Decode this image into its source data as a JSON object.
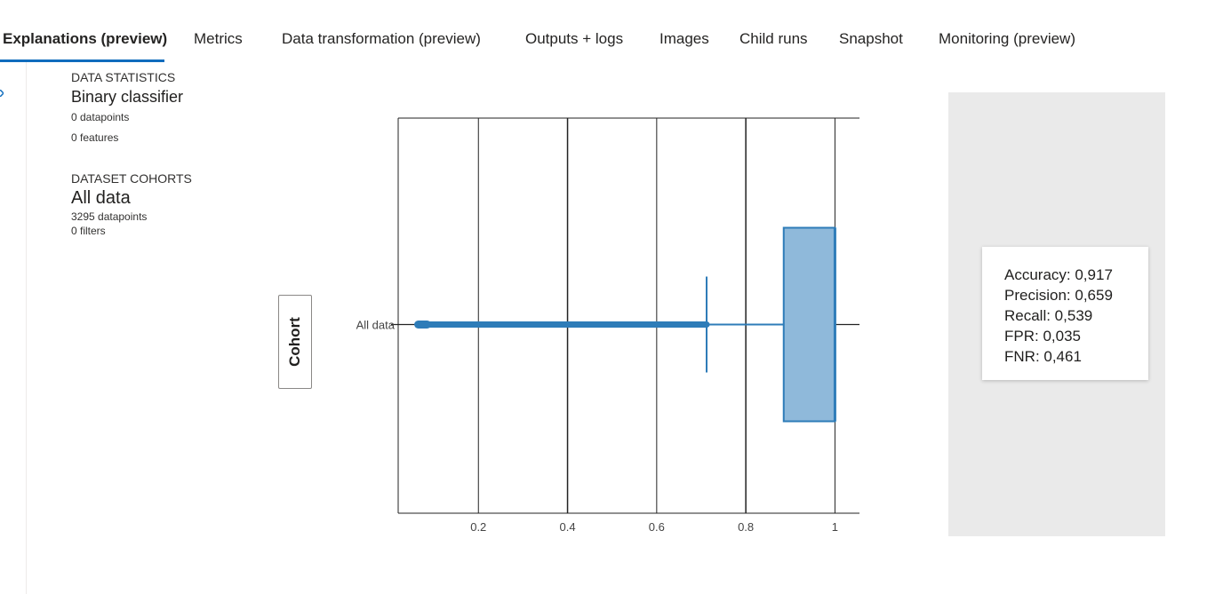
{
  "tabs": [
    {
      "label": "Explanations (preview)",
      "active": true
    },
    {
      "label": "Metrics"
    },
    {
      "label": "Data transformation (preview)"
    },
    {
      "label": "Outputs + logs"
    },
    {
      "label": "Images"
    },
    {
      "label": "Child runs"
    },
    {
      "label": "Snapshot"
    },
    {
      "label": "Monitoring (preview)"
    }
  ],
  "stats": {
    "data_statistics_heading": "DATA STATISTICS",
    "model_type": "Binary classifier",
    "datapoints": "0 datapoints",
    "features": "0 features",
    "cohorts_heading": "DATASET COHORTS",
    "cohort_name": "All data",
    "cohort_datapoints": "3295 datapoints",
    "cohort_filters": "0 filters"
  },
  "cohort_button": {
    "label": "Cohort"
  },
  "metrics": {
    "accuracy": "Accuracy: 0,917",
    "precision": "Precision: 0,659",
    "recall": "Recall: 0,539",
    "fpr": "FPR: 0,035",
    "fnr": "FNR: 0,461"
  },
  "colors": {
    "accent": "#0f6cbd",
    "box_fill": "#8fb9da",
    "box_stroke": "#2e7cb8"
  },
  "chart_data": {
    "type": "box",
    "orientation": "horizontal",
    "categories": [
      "All data"
    ],
    "x_ticks": [
      "0.2",
      "0.4",
      "0.6",
      "0.8",
      "1"
    ],
    "xlim": [
      0.02,
      1.055
    ],
    "series": [
      {
        "category": "All data",
        "q1": 0.885,
        "median": 1.0,
        "q3": 1.0,
        "lower_fence": 0.712,
        "upper_fence": 1.0,
        "outliers_range": [
          0.065,
          0.712
        ]
      }
    ],
    "grid": true
  }
}
